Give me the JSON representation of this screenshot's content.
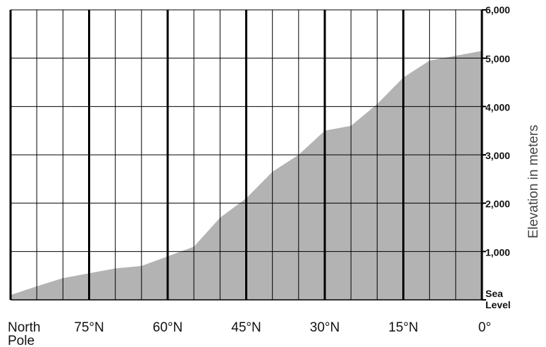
{
  "chart_data": {
    "type": "area",
    "title": "",
    "xlabel": "",
    "ylabel": "Elevation in meters",
    "x": [
      90,
      85,
      80,
      75,
      70,
      65,
      60,
      55,
      50,
      45,
      40,
      35,
      30,
      25,
      20,
      15,
      10,
      5,
      0
    ],
    "series": [
      {
        "values": [
          100,
          280,
          450,
          550,
          650,
          700,
          900,
          1100,
          1700,
          2100,
          2650,
          3000,
          3500,
          3600,
          4050,
          4600,
          4950,
          5050,
          5150
        ]
      }
    ],
    "xlim": [
      90,
      0
    ],
    "ylim": [
      0,
      6000
    ],
    "x_ticks": [
      {
        "value": 90,
        "label_line1": "North",
        "label_line2": "Pole"
      },
      {
        "value": 75,
        "label_line1": "75°N",
        "label_line2": ""
      },
      {
        "value": 60,
        "label_line1": "60°N",
        "label_line2": ""
      },
      {
        "value": 45,
        "label_line1": "45°N",
        "label_line2": ""
      },
      {
        "value": 30,
        "label_line1": "30°N",
        "label_line2": ""
      },
      {
        "value": 15,
        "label_line1": "15°N",
        "label_line2": ""
      },
      {
        "value": 0,
        "label_line1": "0°",
        "label_line2": ""
      }
    ],
    "y_ticks": [
      {
        "value": 6000,
        "label_line1": "6,000",
        "label_line2": ""
      },
      {
        "value": 5000,
        "label_line1": "5,000",
        "label_line2": ""
      },
      {
        "value": 4000,
        "label_line1": "4,000",
        "label_line2": ""
      },
      {
        "value": 3000,
        "label_line1": "3,000",
        "label_line2": ""
      },
      {
        "value": 2000,
        "label_line1": "2,000",
        "label_line2": ""
      },
      {
        "value": 1000,
        "label_line1": "1,000",
        "label_line2": ""
      },
      {
        "value": 0,
        "label_line1": "Sea",
        "label_line2": "Level"
      }
    ],
    "minor_x_step": 5,
    "grid": true,
    "colors": {
      "area": "#b3b3b3",
      "grid": "#000000",
      "text": "#111111"
    }
  }
}
